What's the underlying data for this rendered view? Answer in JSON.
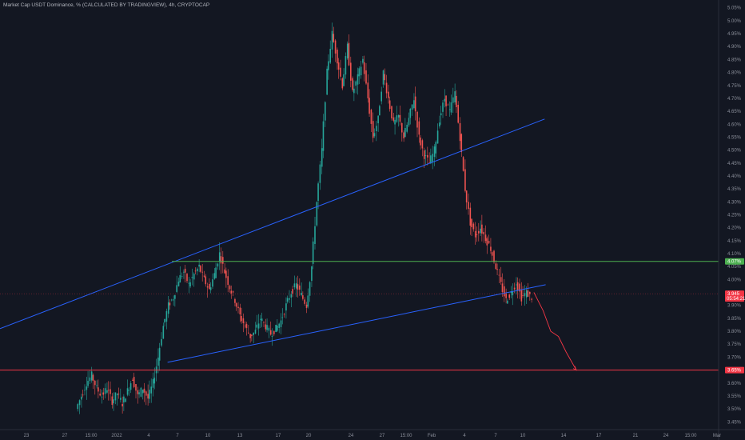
{
  "window": {
    "title": "Market Cap USDT Dominance, % (CALCULATED BY TRADINGVIEW), 4h, CRYPTOCAP"
  },
  "colors": {
    "background": "#131722",
    "up": "#26a69a",
    "down": "#ef5350",
    "trendline": "#2962ff",
    "support": "#4caf50",
    "target": "#f23645",
    "axis_text": "#8a8e99"
  },
  "chart_data": {
    "type": "candlestick",
    "title": "Market Cap USDT Dominance, % (CALCULATED BY TRADINGVIEW), 4h, CRYPTOCAP",
    "ylim": [
      3.42,
      5.08
    ],
    "yticks": [
      "3.45%",
      "3.50%",
      "3.55%",
      "3.60%",
      "3.65%",
      "3.70%",
      "3.75%",
      "3.80%",
      "3.85%",
      "3.90%",
      "3.95%",
      "4.00%",
      "4.05%",
      "4.10%",
      "4.15%",
      "4.20%",
      "4.25%",
      "4.30%",
      "4.35%",
      "4.40%",
      "4.45%",
      "4.50%",
      "4.55%",
      "4.60%",
      "4.65%",
      "4.70%",
      "4.75%",
      "4.80%",
      "4.85%",
      "4.90%",
      "4.95%",
      "5.00%",
      "5.05%"
    ],
    "xticks": [
      "23",
      "27",
      "15:00",
      "2022",
      "4",
      "7",
      "10",
      "13",
      "17",
      "20",
      "24",
      "27",
      "15:00",
      "Feb",
      "4",
      "7",
      "10",
      "14",
      "17",
      "21",
      "24",
      "15:00",
      "Mar"
    ],
    "series": {
      "close_path": [
        [
          0.0,
          3.5
        ],
        [
          1.0,
          3.55
        ],
        [
          2.0,
          3.6
        ],
        [
          3.0,
          3.63
        ],
        [
          4.0,
          3.58
        ],
        [
          5.0,
          3.55
        ],
        [
          6.0,
          3.58
        ],
        [
          7.0,
          3.53
        ],
        [
          8.0,
          3.56
        ],
        [
          9.0,
          3.52
        ],
        [
          10.0,
          3.57
        ],
        [
          11.0,
          3.62
        ],
        [
          12.0,
          3.55
        ],
        [
          13.0,
          3.58
        ],
        [
          14.0,
          3.54
        ],
        [
          15.0,
          3.6
        ],
        [
          16.0,
          3.7
        ],
        [
          17.0,
          3.82
        ],
        [
          18.0,
          3.9
        ],
        [
          19.0,
          3.93
        ],
        [
          20.0,
          4.0
        ],
        [
          21.0,
          4.03
        ],
        [
          22.0,
          3.98
        ],
        [
          23.0,
          4.02
        ],
        [
          24.0,
          4.05
        ],
        [
          25.0,
          4.0
        ],
        [
          26.0,
          3.96
        ],
        [
          27.0,
          4.02
        ],
        [
          28.0,
          4.1
        ],
        [
          29.0,
          4.03
        ],
        [
          30.0,
          3.97
        ],
        [
          31.0,
          3.92
        ],
        [
          32.0,
          3.86
        ],
        [
          33.0,
          3.82
        ],
        [
          34.0,
          3.78
        ],
        [
          35.0,
          3.8
        ],
        [
          36.0,
          3.85
        ],
        [
          37.0,
          3.82
        ],
        [
          38.0,
          3.79
        ],
        [
          39.0,
          3.81
        ],
        [
          40.0,
          3.84
        ],
        [
          41.0,
          3.9
        ],
        [
          42.0,
          3.95
        ],
        [
          43.0,
          3.98
        ],
        [
          44.0,
          3.94
        ],
        [
          45.0,
          3.9
        ],
        [
          46.0,
          4.05
        ],
        [
          47.0,
          4.3
        ],
        [
          48.0,
          4.5
        ],
        [
          49.0,
          4.8
        ],
        [
          50.0,
          4.95
        ],
        [
          51.0,
          4.85
        ],
        [
          52.0,
          4.75
        ],
        [
          53.0,
          4.9
        ],
        [
          54.0,
          4.72
        ],
        [
          55.0,
          4.78
        ],
        [
          56.0,
          4.85
        ],
        [
          57.0,
          4.7
        ],
        [
          58.0,
          4.55
        ],
        [
          59.0,
          4.62
        ],
        [
          60.0,
          4.8
        ],
        [
          61.0,
          4.7
        ],
        [
          62.0,
          4.6
        ],
        [
          63.0,
          4.63
        ],
        [
          64.0,
          4.55
        ],
        [
          65.0,
          4.62
        ],
        [
          66.0,
          4.7
        ],
        [
          67.0,
          4.55
        ],
        [
          68.0,
          4.48
        ],
        [
          69.0,
          4.45
        ],
        [
          70.0,
          4.5
        ],
        [
          71.0,
          4.62
        ],
        [
          72.0,
          4.7
        ],
        [
          73.0,
          4.65
        ],
        [
          74.0,
          4.72
        ],
        [
          75.0,
          4.55
        ],
        [
          76.0,
          4.35
        ],
        [
          77.0,
          4.22
        ],
        [
          78.0,
          4.17
        ],
        [
          79.0,
          4.2
        ],
        [
          80.0,
          4.16
        ],
        [
          81.0,
          4.12
        ],
        [
          82.0,
          4.05
        ],
        [
          83.0,
          3.98
        ],
        [
          84.0,
          3.92
        ],
        [
          85.0,
          3.95
        ],
        [
          86.0,
          3.99
        ],
        [
          87.0,
          3.93
        ],
        [
          88.0,
          3.95
        ],
        [
          89.0,
          3.93
        ]
      ],
      "upper_trendline": [
        [
          0.0,
          3.81
        ],
        [
          91.3,
          4.62
        ]
      ],
      "lower_trendline": [
        [
          17.6,
          3.68
        ],
        [
          91.5,
          3.98
        ]
      ],
      "support_level": 4.07,
      "target_level": 3.65,
      "current_price": 3.945,
      "projection": [
        [
          89.2,
          3.95
        ],
        [
          91.0,
          3.88
        ],
        [
          92.5,
          3.8
        ],
        [
          94.0,
          3.78
        ],
        [
          95.5,
          3.72
        ],
        [
          97.5,
          3.65
        ]
      ]
    },
    "price_badges": [
      {
        "label": "4.07%",
        "color": "#4caf50"
      },
      {
        "label": "3.945",
        "sub": "05:54:21",
        "color": "#f23645"
      },
      {
        "label": "3.65%",
        "color": "#f23645"
      }
    ]
  }
}
